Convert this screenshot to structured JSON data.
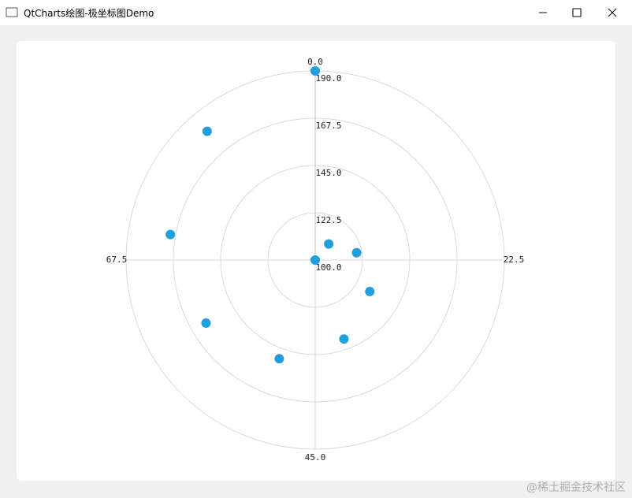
{
  "window": {
    "title": "QtCharts绘图-极坐标图Demo"
  },
  "chart_data": {
    "type": "polar-scatter",
    "x": [
      0,
      10,
      20,
      30,
      40,
      50,
      60,
      70,
      80,
      90
    ],
    "values": [
      100,
      110,
      120,
      130,
      140,
      150,
      160,
      170,
      180,
      190
    ],
    "color": "#209fdf",
    "xlim": [
      0,
      90
    ],
    "xticks": [
      {
        "value": 0,
        "label": "0.0"
      },
      22.5,
      {
        "value": 45,
        "label": "45.0"
      },
      67.5
    ],
    "ylim": [
      100,
      190
    ],
    "yticks": [
      {
        "value": 100,
        "label": "100.0"
      },
      122.5,
      {
        "value": 145,
        "label": "145.0"
      },
      167.5,
      {
        "value": 190,
        "label": "190.0"
      }
    ],
    "grid": true
  },
  "watermark": "@稀土掘金技术社区"
}
